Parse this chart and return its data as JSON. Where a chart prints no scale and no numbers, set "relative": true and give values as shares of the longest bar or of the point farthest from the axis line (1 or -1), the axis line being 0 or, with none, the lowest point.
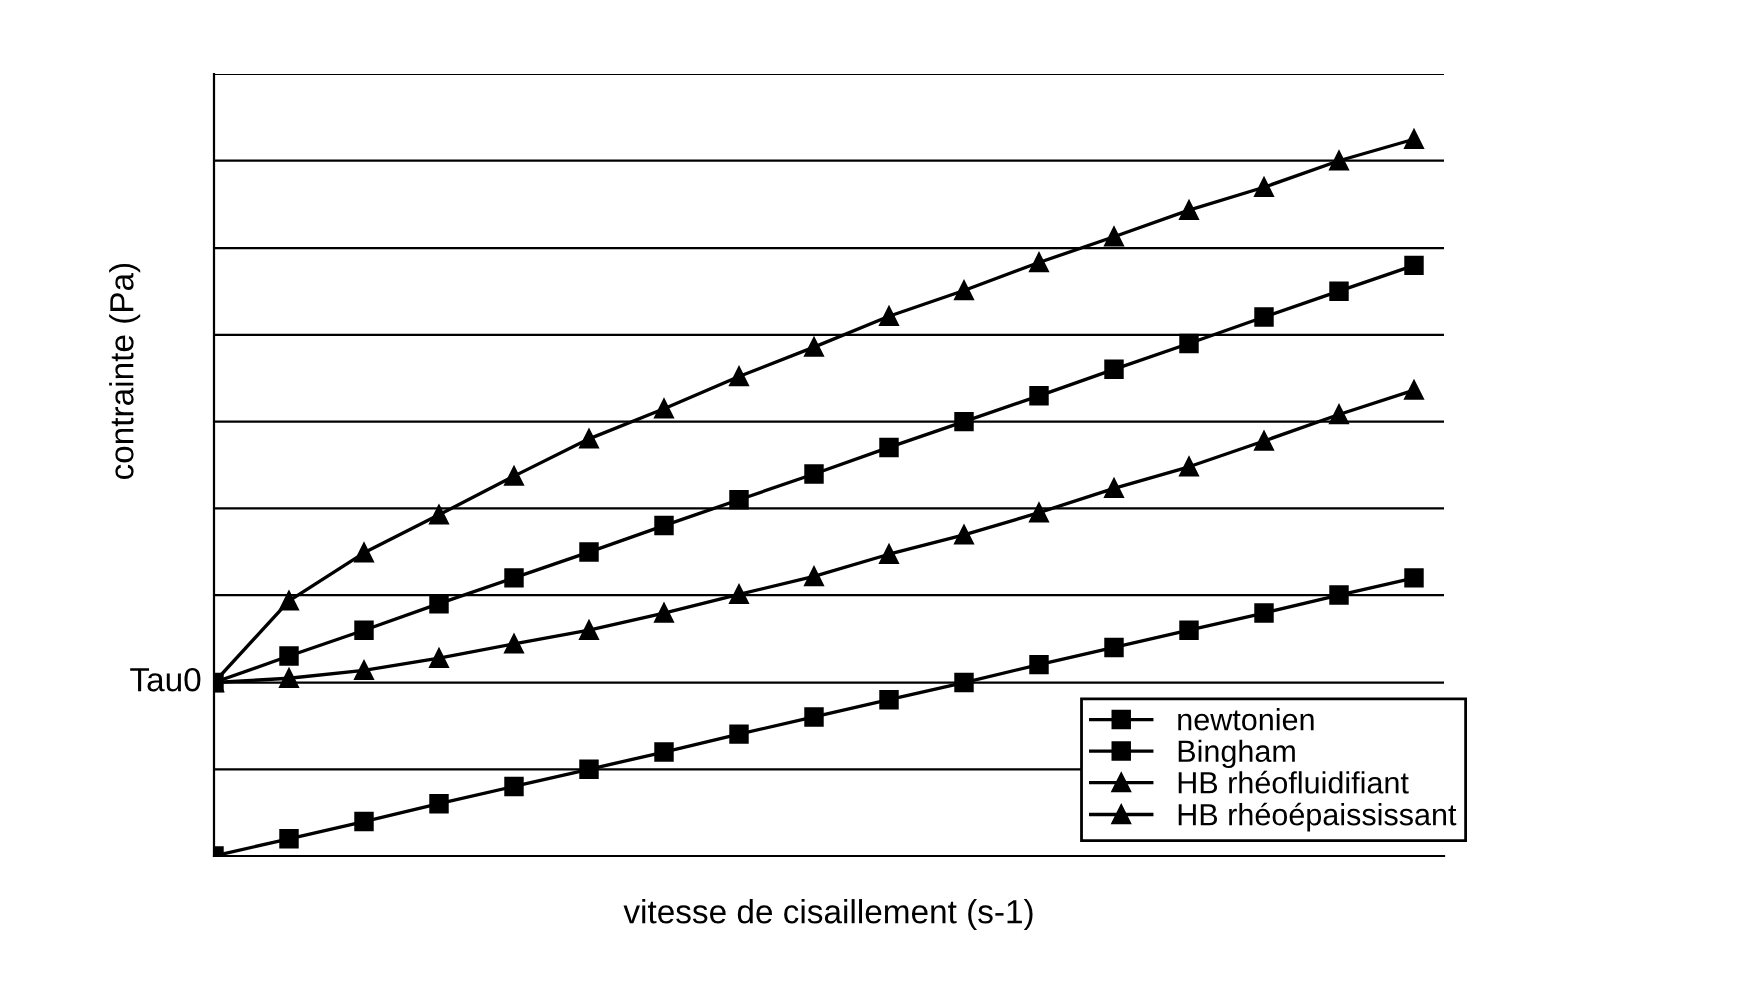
{
  "chart_data": {
    "type": "line",
    "relative": true,
    "xlabel": "vitesse de cisaillement (s-1)",
    "ylabel": "contrainte (Pa)",
    "categories": [
      null,
      null,
      null,
      null,
      null,
      null,
      null,
      null,
      null,
      null,
      null,
      null,
      null,
      null,
      null,
      null,
      null
    ],
    "legend": "bottom right",
    "ref_lines": [
      {
        "axis": "y",
        "value": 0.121,
        "color": "#000000"
      },
      {
        "axis": "y",
        "value": 0.242,
        "color": "#000000",
        "label": "Tau0"
      },
      {
        "axis": "y",
        "value": 0.364,
        "color": "#000000"
      },
      {
        "axis": "y",
        "value": 0.485,
        "color": "#000000"
      },
      {
        "axis": "y",
        "value": 0.606,
        "color": "#000000"
      },
      {
        "axis": "y",
        "value": 0.727,
        "color": "#000000"
      },
      {
        "axis": "y",
        "value": 0.848,
        "color": "#000000"
      },
      {
        "axis": "y",
        "value": 0.97,
        "color": "#000000"
      },
      {
        "axis": "y",
        "value": 1.091,
        "color": "#000000"
      }
    ],
    "series": [
      {
        "name": "newtonien",
        "color": "#000000",
        "marker": "square",
        "values": [
          0,
          0.024,
          0.048,
          0.073,
          0.097,
          0.121,
          0.145,
          0.17,
          0.194,
          0.218,
          0.242,
          0.267,
          0.291,
          0.315,
          0.339,
          0.364,
          0.388
        ]
      },
      {
        "name": "Bingham",
        "color": "#000000",
        "marker": "square",
        "values": [
          0.242,
          0.279,
          0.315,
          0.352,
          0.388,
          0.424,
          0.461,
          0.497,
          0.533,
          0.57,
          0.606,
          0.642,
          0.679,
          0.715,
          0.752,
          0.788,
          0.824
        ]
      },
      {
        "name": "HB rhéofluidifiant",
        "color": "#000000",
        "marker": "triangle",
        "values": [
          0.242,
          0.356,
          0.423,
          0.476,
          0.53,
          0.582,
          0.624,
          0.669,
          0.71,
          0.753,
          0.789,
          0.828,
          0.864,
          0.901,
          0.933,
          0.97,
          1
        ]
      },
      {
        "name": "HB rhéoépaississant",
        "color": "#000000",
        "marker": "triangle",
        "values": [
          0.242,
          0.248,
          0.259,
          0.276,
          0.296,
          0.315,
          0.339,
          0.365,
          0.39,
          0.421,
          0.448,
          0.479,
          0.513,
          0.543,
          0.579,
          0.616,
          0.65
        ]
      }
    ]
  }
}
